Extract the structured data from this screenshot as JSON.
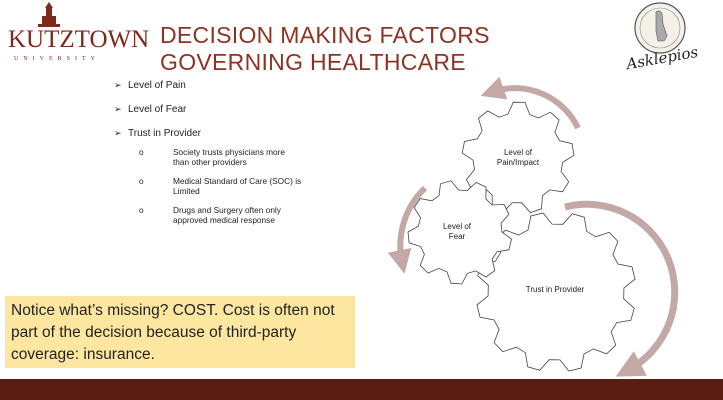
{
  "header": {
    "logo": {
      "name": "KUTZTOWN",
      "subtitle": "UNIVERSITY"
    },
    "title": [
      "DECISION MAKING FACTORS",
      "GOVERNING HEALTHCARE"
    ],
    "emblem": "Asklepios"
  },
  "bullets": [
    {
      "text": "Level of Pain"
    },
    {
      "text": "Level of Fear"
    },
    {
      "text": "Trust in Provider",
      "sub": [
        "Society trusts physicians more than other providers",
        "Medical Standard of Care (SOC) is Limited",
        "Drugs and Surgery often only approved medical response"
      ]
    }
  ],
  "diagram": {
    "gears": [
      {
        "label": "Level of Pain/Impact"
      },
      {
        "label": "Level of Fear"
      },
      {
        "label": "Trust in Provider"
      }
    ]
  },
  "callout": "Notice what’s missing? COST.  Cost is often not part of the decision because of third-party coverage: insurance."
}
